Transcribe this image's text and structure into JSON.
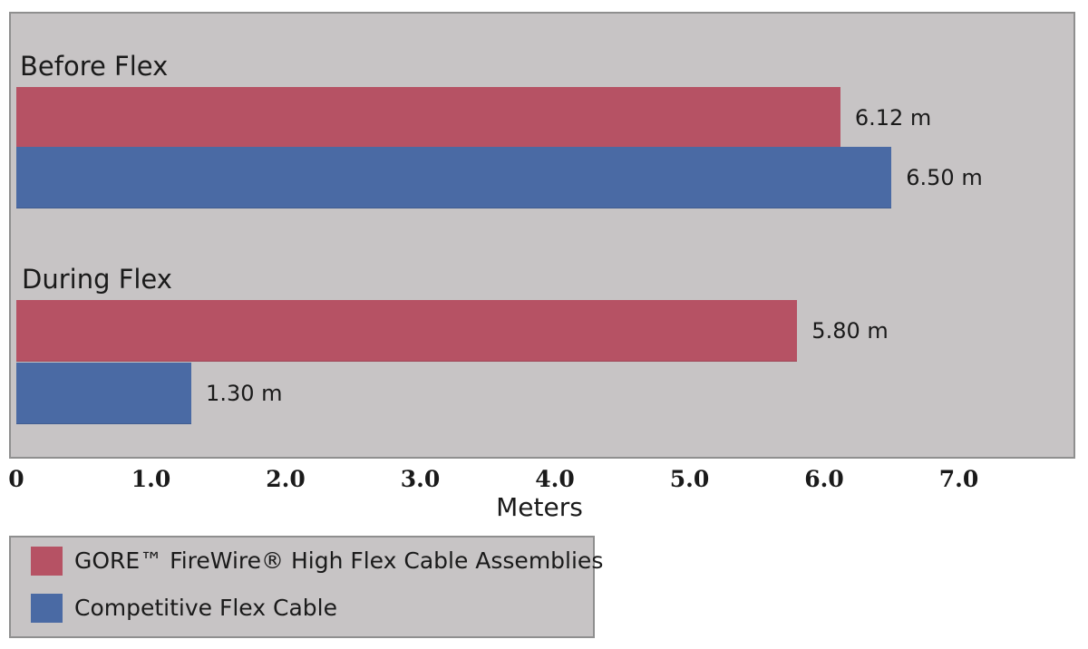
{
  "chart_data": {
    "type": "bar",
    "orientation": "horizontal",
    "categories": [
      "Before Flex",
      "During Flex"
    ],
    "series": [
      {
        "name": "GORE™ FireWire® High Flex Cable Assemblies",
        "color": "#b65264",
        "values": [
          6.12,
          5.8
        ],
        "labels": [
          "6.12 m",
          "5.80 m"
        ]
      },
      {
        "name": "Competitive Flex Cable",
        "color": "#4a6aa4",
        "values": [
          6.5,
          1.3
        ],
        "labels": [
          "6.50 m",
          "1.30 m"
        ]
      }
    ],
    "xlabel": "Meters",
    "ylabel": "",
    "title": "",
    "xlim": [
      0,
      7.0
    ],
    "xticks": [
      "0",
      "1.0",
      "2.0",
      "3.0",
      "4.0",
      "5.0",
      "6.0",
      "7.0"
    ],
    "grid": false,
    "legend": "bottom-left",
    "background": "#c7c4c5"
  }
}
